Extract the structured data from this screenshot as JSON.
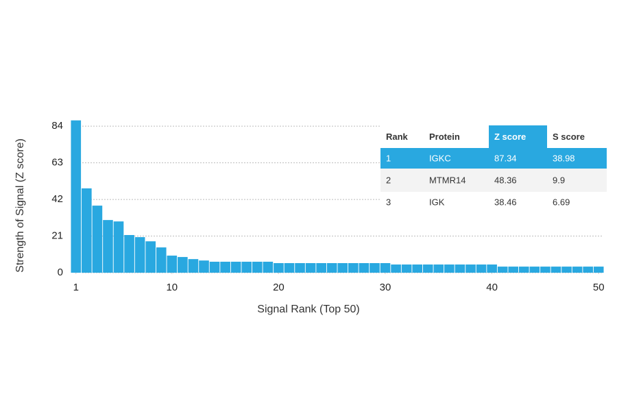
{
  "chart_data": {
    "type": "bar",
    "x_label": "Signal Rank (Top 50)",
    "y_label": "Strength of Signal (Z score)",
    "x": [
      1,
      2,
      3,
      4,
      5,
      6,
      7,
      8,
      9,
      10,
      11,
      12,
      13,
      14,
      15,
      16,
      17,
      18,
      19,
      20,
      21,
      22,
      23,
      24,
      25,
      26,
      27,
      28,
      29,
      30,
      31,
      32,
      33,
      34,
      35,
      36,
      37,
      38,
      39,
      40,
      41,
      42,
      43,
      44,
      45,
      46,
      47,
      48,
      49,
      50
    ],
    "values": [
      87.34,
      48.36,
      38.46,
      30.2,
      29.4,
      21.6,
      20.4,
      18,
      14.5,
      9.8,
      9,
      7.8,
      7,
      6.3,
      6.3,
      6.3,
      6.3,
      6.3,
      6.3,
      5.5,
      5.5,
      5.5,
      5.5,
      5.5,
      5.5,
      5.5,
      5.5,
      5.5,
      5.5,
      5.5,
      4.7,
      4.7,
      4.7,
      4.7,
      4.7,
      4.7,
      4.7,
      4.7,
      4.7,
      4.7,
      3.5,
      3.5,
      3.5,
      3.5,
      3.5,
      3.5,
      3.5,
      3.5,
      3.5,
      3.5
    ],
    "color": "#29a8e0",
    "xlim": [
      0.5,
      50.5
    ],
    "xticks": [
      1,
      10,
      20,
      30,
      40,
      50
    ],
    "ylim": [
      0,
      88
    ],
    "yticks": [
      0,
      21,
      42,
      63,
      84
    ],
    "grid": true
  },
  "table": {
    "columns": [
      "Rank",
      "Protein",
      "Z score",
      "S score"
    ],
    "rows": [
      [
        1,
        "IGKC",
        87.34,
        38.98
      ],
      [
        2,
        "MTMR14",
        48.36,
        9.9
      ],
      [
        3,
        "IGK",
        38.46,
        6.69
      ]
    ],
    "highlight_color": "#29a8e0"
  }
}
